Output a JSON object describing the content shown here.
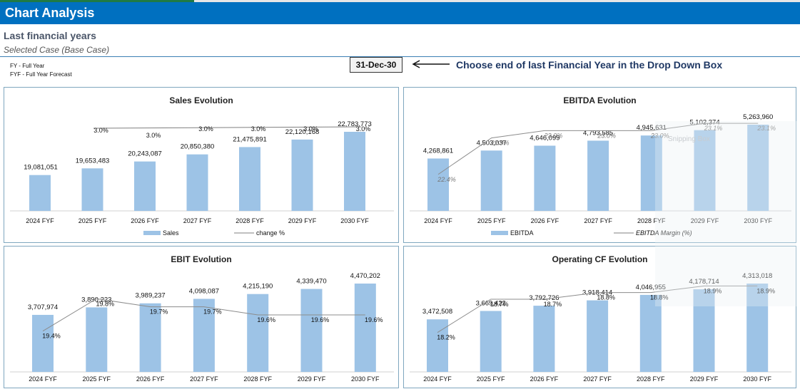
{
  "header": {
    "title": "Chart Analysis"
  },
  "subtitle": "Last financial years",
  "case_label": "Selected Case (Base Case)",
  "notes": [
    "FY - Full Year",
    "FYF - Full Year Forecast"
  ],
  "date_selector": {
    "value": "31-Dec-30"
  },
  "instruction": "Choose end of last Financial Year in the Drop Down Box",
  "overlay_text": "Snipping Box",
  "colors": {
    "header": "#0070c0",
    "bar": "#9dc3e6",
    "line": "#7f7f7f",
    "panel_border": "#7fa7bf"
  },
  "chart_data": [
    {
      "type": "bar",
      "title": "Sales Evolution",
      "categories": [
        "2024 FYF",
        "2025 FYF",
        "2026 FYF",
        "2027 FYF",
        "2028 FYF",
        "2029 FYF",
        "2030 FYF"
      ],
      "series": [
        {
          "name": "Sales",
          "values": [
            19081051,
            19653483,
            20243087,
            20850380,
            21475891,
            22120168,
            22783773
          ]
        },
        {
          "name": "change %",
          "values": [
            null,
            3.0,
            3.0,
            3.0,
            3.0,
            3.0,
            3.0
          ]
        }
      ],
      "bar_labels": [
        "19,081,051",
        "19,653,483",
        "20,243,087",
        "20,850,380",
        "21,475,891",
        "22,120,168",
        "22,783,773"
      ],
      "line_labels": [
        "",
        "3.0%",
        "3.0%",
        "3.0%",
        "3.0%",
        "3.0%",
        "3.0%"
      ],
      "legend": "bottom"
    },
    {
      "type": "bar",
      "title": "EBITDA Evolution",
      "categories": [
        "2024 FYF",
        "2025 FYF",
        "2026 FYF",
        "2027 FYF",
        "2028 FYF",
        "2029 FYF",
        "2030 FYF"
      ],
      "series": [
        {
          "name": "EBITDA",
          "values": [
            4268861,
            4503037,
            4646099,
            4793585,
            4945631,
            5102374,
            5263960
          ]
        },
        {
          "name": "EBITDA Margin (%)",
          "values": [
            22.4,
            22.9,
            23.0,
            23.0,
            23.0,
            23.1,
            23.1
          ]
        }
      ],
      "bar_labels": [
        "4,268,861",
        "4,503,037",
        "4,646,099",
        "4,793,585",
        "4,945,631",
        "5,102,374",
        "5,263,960"
      ],
      "line_labels": [
        "22.4%",
        "22.9%",
        "23.0%",
        "23.0%",
        "23.0%",
        "23.1%",
        "23.1%"
      ],
      "legend": "bottom"
    },
    {
      "type": "bar",
      "title": "EBIT Evolution",
      "categories": [
        "2024 FYF",
        "2025 FYF",
        "2026 FYF",
        "2027 FYF",
        "2028 FYF",
        "2029 FYF",
        "2030 FYF"
      ],
      "series": [
        {
          "values": [
            3707974,
            3890223,
            3989237,
            4098087,
            4215190,
            4339470,
            4470202
          ]
        },
        {
          "values": [
            19.4,
            19.8,
            19.7,
            19.7,
            19.6,
            19.6,
            19.6
          ]
        }
      ],
      "bar_labels": [
        "3,707,974",
        "3,890,223",
        "3,989,237",
        "4,098,087",
        "4,215,190",
        "4,339,470",
        "4,470,202"
      ],
      "line_labels": [
        "19.4%",
        "19.8%",
        "19.7%",
        "19.7%",
        "19.6%",
        "19.6%",
        "19.6%"
      ]
    },
    {
      "type": "bar",
      "title": "Operating CF Evolution",
      "categories": [
        "2024 FYF",
        "2025 FYF",
        "2026 FYF",
        "2027 FYF",
        "2028 FYF",
        "2029 FYF",
        "2030 FYF"
      ],
      "series": [
        {
          "values": [
            3472508,
            3669422,
            3792726,
            3918414,
            4046955,
            4178714,
            4313018
          ]
        },
        {
          "values": [
            18.2,
            18.7,
            18.7,
            18.8,
            18.8,
            18.9,
            18.9
          ]
        }
      ],
      "bar_labels": [
        "3,472,508",
        "3,669,422",
        "3,792,726",
        "3,918,414",
        "4,046,955",
        "4,178,714",
        "4,313,018"
      ],
      "line_labels": [
        "18.2%",
        "18.7%",
        "18.7%",
        "18.8%",
        "18.8%",
        "18.9%",
        "18.9%"
      ]
    }
  ]
}
